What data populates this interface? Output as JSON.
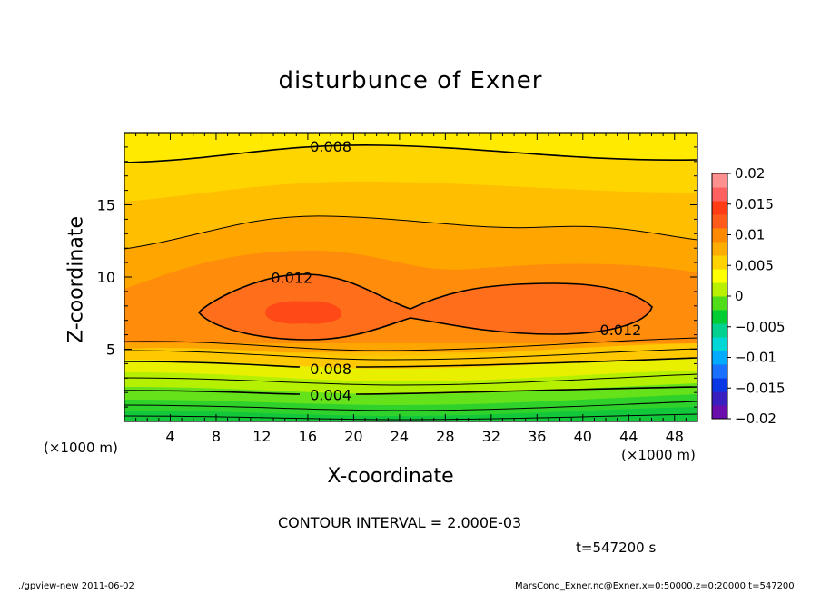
{
  "chart_data": {
    "type": "heatmap",
    "title": "disturbunce of Exner",
    "xlabel": "X-coordinate",
    "ylabel": "Z-coordinate",
    "x_unit": "(×1000 m)",
    "xlim": [
      0,
      50
    ],
    "ylim": [
      0,
      20
    ],
    "x_ticks": [
      4,
      8,
      12,
      16,
      20,
      24,
      28,
      32,
      36,
      40,
      44,
      48
    ],
    "y_ticks": [
      5,
      10,
      15
    ],
    "colorbar": {
      "ticks": [
        "0.02",
        "0.015",
        "0.01",
        "0.005",
        "0",
        "-0.005",
        "-0.01",
        "-0.015",
        "-0.02"
      ],
      "range": [
        -0.02,
        0.02
      ],
      "colors": [
        "#6a0dad",
        "#3a1fc0",
        "#0a37e6",
        "#1a70ff",
        "#00aaff",
        "#00d7d7",
        "#00d090",
        "#00cc33",
        "#4fdd1a",
        "#b8f000",
        "#ffff00",
        "#ffd200",
        "#ffad00",
        "#ff8a00",
        "#ff5a1a",
        "#ff3c14",
        "#ff6060",
        "#ff9090"
      ]
    },
    "contour_labels": [
      {
        "value": "0.008",
        "x": 18,
        "z": 19
      },
      {
        "value": "0.012",
        "x": 14.6,
        "z": 9.9
      },
      {
        "value": "0.012",
        "x": 43.3,
        "z": 6.3
      },
      {
        "value": "0.008",
        "x": 18,
        "z": 3.6
      },
      {
        "value": "0.004",
        "x": 18,
        "z": 1.8
      }
    ],
    "contour_interval": "CONTOUR INTERVAL = 2.000E-03",
    "time": "t=547200 s"
  },
  "footer": {
    "left": "./gpview-new  2011-06-02",
    "right": "MarsCond_Exner.nc@Exner,x=0:50000,z=0:20000,t=547200"
  }
}
